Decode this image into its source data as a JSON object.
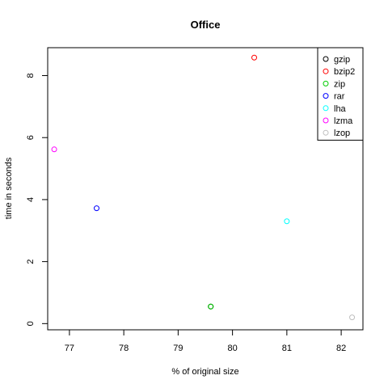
{
  "chart_data": {
    "type": "scatter",
    "title": "Office",
    "xlabel": "% of original size",
    "ylabel": "time in seconds",
    "xlim": [
      76.6,
      82.4
    ],
    "ylim": [
      -0.2,
      8.9
    ],
    "x_ticks": [
      77,
      78,
      79,
      80,
      81,
      82
    ],
    "y_ticks": [
      0,
      2,
      4,
      6,
      8
    ],
    "legend_position": "top-right",
    "marker": "open-circle",
    "series": [
      {
        "name": "gzip",
        "color": "#000000",
        "x": 79.6,
        "y": 0.55
      },
      {
        "name": "bzip2",
        "color": "#ff0000",
        "x": 80.4,
        "y": 8.58
      },
      {
        "name": "zip",
        "color": "#00cd00",
        "x": 79.6,
        "y": 0.55
      },
      {
        "name": "rar",
        "color": "#0000ff",
        "x": 77.5,
        "y": 3.72
      },
      {
        "name": "lha",
        "color": "#00ffff",
        "x": 81.0,
        "y": 3.3
      },
      {
        "name": "lzma",
        "color": "#ff00ff",
        "x": 76.72,
        "y": 5.62
      },
      {
        "name": "lzop",
        "color": "#bebebe",
        "x": 82.2,
        "y": 0.2
      }
    ]
  }
}
